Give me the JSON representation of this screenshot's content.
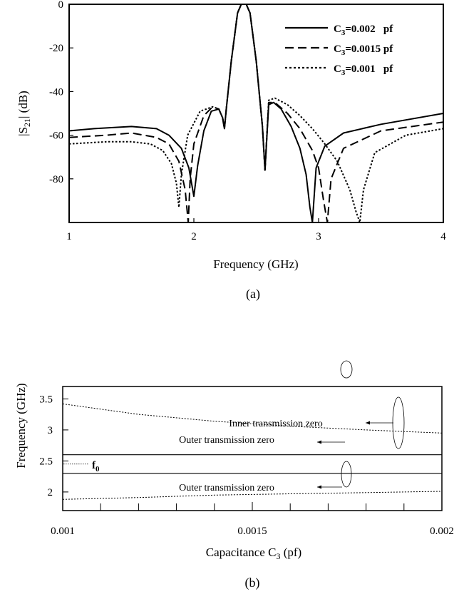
{
  "chart_data": [
    {
      "type": "line",
      "caption": "(a)",
      "xlabel": "Frequency (GHz)",
      "ylabel_main": "|S",
      "ylabel_sub": "21",
      "ylabel_tail": "| (dB)",
      "xlim": [
        1,
        4
      ],
      "ylim": [
        -100,
        0
      ],
      "xticks": [
        "1",
        "2",
        "3",
        "4"
      ],
      "yticks": [
        "0",
        "-20",
        "-40",
        "-60",
        "-80"
      ],
      "grid": false,
      "legend_position": "top-right",
      "series": [
        {
          "name_main": "C",
          "name_sub": "3",
          "name_tail": "=0.002   pf",
          "style": "solid",
          "x": [
            1.0,
            1.2,
            1.5,
            1.7,
            1.8,
            1.9,
            1.96,
            2.0,
            2.03,
            2.08,
            2.14,
            2.2,
            2.23,
            2.245,
            2.26,
            2.3,
            2.35,
            2.38,
            2.4,
            2.42,
            2.45,
            2.5,
            2.55,
            2.57,
            2.6,
            2.64,
            2.7,
            2.78,
            2.85,
            2.9,
            2.93,
            2.95,
            2.98,
            3.05,
            3.2,
            3.5,
            4.0
          ],
          "y": [
            -58,
            -57,
            -56,
            -57,
            -60,
            -66,
            -75,
            -88,
            -74,
            -58,
            -49,
            -48,
            -52,
            -57,
            -48,
            -26,
            -4,
            0,
            0,
            0,
            -4,
            -26,
            -56,
            -76,
            -46,
            -45,
            -48,
            -56,
            -66,
            -78,
            -93,
            -100,
            -75,
            -65,
            -59,
            -55,
            -50
          ]
        },
        {
          "name_main": "C",
          "name_sub": "3",
          "name_tail": "=0.0015 pf",
          "style": "dashed",
          "x": [
            1.0,
            1.3,
            1.5,
            1.7,
            1.8,
            1.88,
            1.93,
            1.955,
            1.97,
            2.0,
            2.08,
            2.15,
            2.2,
            2.23,
            2.245,
            2.26,
            2.3,
            2.35,
            2.38,
            2.4,
            2.42,
            2.45,
            2.5,
            2.55,
            2.57,
            2.6,
            2.65,
            2.75,
            2.85,
            2.95,
            3.0,
            3.04,
            3.07,
            3.1,
            3.2,
            3.5,
            4.0
          ],
          "y": [
            -61,
            -60,
            -59,
            -61,
            -64,
            -72,
            -85,
            -100,
            -80,
            -64,
            -51,
            -47,
            -48,
            -52,
            -57,
            -48,
            -26,
            -4,
            0,
            0,
            0,
            -4,
            -26,
            -56,
            -76,
            -45,
            -45,
            -50,
            -57,
            -67,
            -75,
            -90,
            -100,
            -80,
            -66,
            -58,
            -54
          ]
        },
        {
          "name_main": "C",
          "name_sub": "3",
          "name_tail": "=0.001   pf",
          "style": "dotted",
          "x": [
            1.0,
            1.3,
            1.5,
            1.65,
            1.75,
            1.82,
            1.86,
            1.88,
            1.9,
            1.95,
            2.05,
            2.15,
            2.2,
            2.23,
            2.245,
            2.26,
            2.3,
            2.35,
            2.38,
            2.4,
            2.42,
            2.45,
            2.5,
            2.55,
            2.57,
            2.6,
            2.65,
            2.75,
            2.85,
            2.95,
            3.05,
            3.15,
            3.25,
            3.3,
            3.33,
            3.36,
            3.45,
            3.7,
            4.0
          ],
          "y": [
            -64,
            -63,
            -63,
            -64,
            -67,
            -73,
            -82,
            -93,
            -78,
            -60,
            -49,
            -47,
            -48,
            -52,
            -57,
            -48,
            -26,
            -4,
            0,
            0,
            0,
            -4,
            -26,
            -56,
            -76,
            -44,
            -43,
            -46,
            -51,
            -57,
            -64,
            -72,
            -85,
            -95,
            -100,
            -85,
            -68,
            -60,
            -57
          ]
        }
      ]
    },
    {
      "type": "line",
      "caption": "(b)",
      "xlabel_main": "Capacitance C",
      "xlabel_sub": "3",
      "xlabel_tail": " (pf)",
      "ylabel": "Frequency (GHz)",
      "xlim": [
        0.001,
        0.002
      ],
      "ylim": [
        1.7,
        3.7
      ],
      "xticks": [
        "0.001",
        "0.0015",
        "0.002"
      ],
      "yticks": [
        "3.5",
        "3",
        "2.5",
        "2"
      ],
      "grid": false,
      "series": [
        {
          "label": "Outer transmission zero",
          "style": "dotted",
          "x": [
            0.001,
            0.0012,
            0.0014,
            0.0016,
            0.0018,
            0.002
          ],
          "y": [
            3.42,
            3.25,
            3.14,
            3.06,
            3.0,
            2.95
          ]
        },
        {
          "label": "Inner transmission zero",
          "style": "solid",
          "x": [
            0.001,
            0.002
          ],
          "y": [
            2.6,
            2.6
          ]
        },
        {
          "label": "Inner transmission zero",
          "style": "solid",
          "x": [
            0.001,
            0.002
          ],
          "y": [
            2.3,
            2.3
          ]
        },
        {
          "label": "Outer transmission zero",
          "style": "dotted",
          "x": [
            0.001,
            0.0012,
            0.0014,
            0.0016,
            0.0018,
            0.002
          ],
          "y": [
            1.88,
            1.91,
            1.95,
            1.97,
            1.99,
            2.01
          ]
        }
      ],
      "annotations": {
        "outer_upper": "Outer transmission zero",
        "inner": "Inner transmission zero",
        "outer_lower": "Outer transmission zero",
        "f0_main": "f",
        "f0_sub": "0",
        "f0_value": 2.45
      }
    }
  ]
}
